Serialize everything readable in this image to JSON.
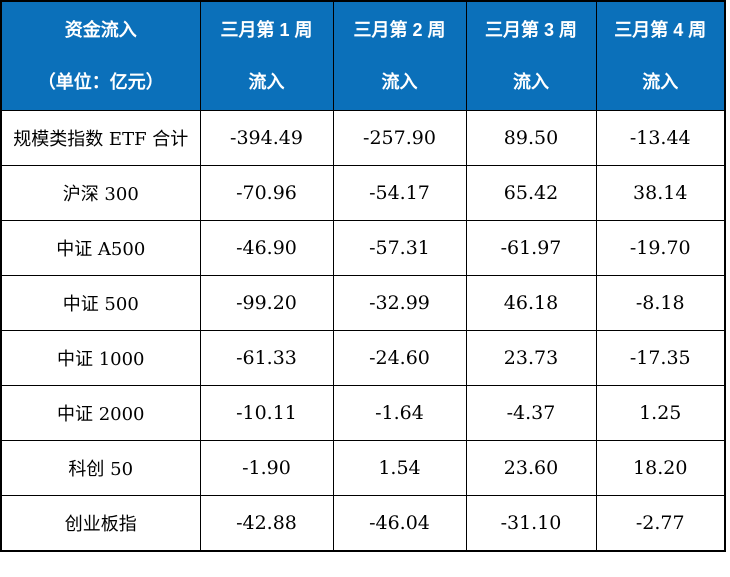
{
  "accent_color": "#0b70ba",
  "border_color": "#000000",
  "header": {
    "title": "资金流入",
    "subtitle": "（单位：亿元）",
    "flow_label": "流入",
    "weeks": [
      {
        "line1": "三月第 1 周",
        "line2": "流入"
      },
      {
        "line1": "三月第 2 周",
        "line2": "流入"
      },
      {
        "line1": "三月第 3 周",
        "line2": "流入"
      },
      {
        "line1": "三月第 4 周",
        "line2": "流入"
      }
    ]
  },
  "rows": [
    {
      "label": "规模类指数 ETF 合计",
      "values": [
        "-394.49",
        "-257.90",
        "89.50",
        "-13.44"
      ]
    },
    {
      "label": "沪深 300",
      "values": [
        "-70.96",
        "-54.17",
        "65.42",
        "38.14"
      ]
    },
    {
      "label": "中证 A500",
      "values": [
        "-46.90",
        "-57.31",
        "-61.97",
        "-19.70"
      ]
    },
    {
      "label": "中证 500",
      "values": [
        "-99.20",
        "-32.99",
        "46.18",
        "-8.18"
      ]
    },
    {
      "label": "中证 1000",
      "values": [
        "-61.33",
        "-24.60",
        "23.73",
        "-17.35"
      ]
    },
    {
      "label": "中证 2000",
      "values": [
        "-10.11",
        "-1.64",
        "-4.37",
        "1.25"
      ]
    },
    {
      "label": "科创 50",
      "values": [
        "-1.90",
        "1.54",
        "23.60",
        "18.20"
      ]
    },
    {
      "label": "创业板指",
      "values": [
        "-42.88",
        "-46.04",
        "-31.10",
        "-2.77"
      ]
    }
  ],
  "chart_data": {
    "type": "table",
    "title": "资金流入（单位：亿元）",
    "columns": [
      "三月第 1 周流入",
      "三月第 2 周流入",
      "三月第 3 周流入",
      "三月第 4 周流入"
    ],
    "categories": [
      "规模类指数 ETF 合计",
      "沪深 300",
      "中证 A500",
      "中证 500",
      "中证 1000",
      "中证 2000",
      "科创 50",
      "创业板指"
    ],
    "series": [
      {
        "name": "三月第 1 周流入",
        "values": [
          -394.49,
          -70.96,
          -46.9,
          -99.2,
          -61.33,
          -10.11,
          -1.9,
          -42.88
        ]
      },
      {
        "name": "三月第 2 周流入",
        "values": [
          -257.9,
          -54.17,
          -57.31,
          -32.99,
          -24.6,
          -1.64,
          1.54,
          -46.04
        ]
      },
      {
        "name": "三月第 3 周流入",
        "values": [
          89.5,
          65.42,
          -61.97,
          46.18,
          23.73,
          -4.37,
          23.6,
          -31.1
        ]
      },
      {
        "name": "三月第 4 周流入",
        "values": [
          -13.44,
          38.14,
          -19.7,
          -8.18,
          -17.35,
          1.25,
          18.2,
          -2.77
        ]
      }
    ]
  }
}
